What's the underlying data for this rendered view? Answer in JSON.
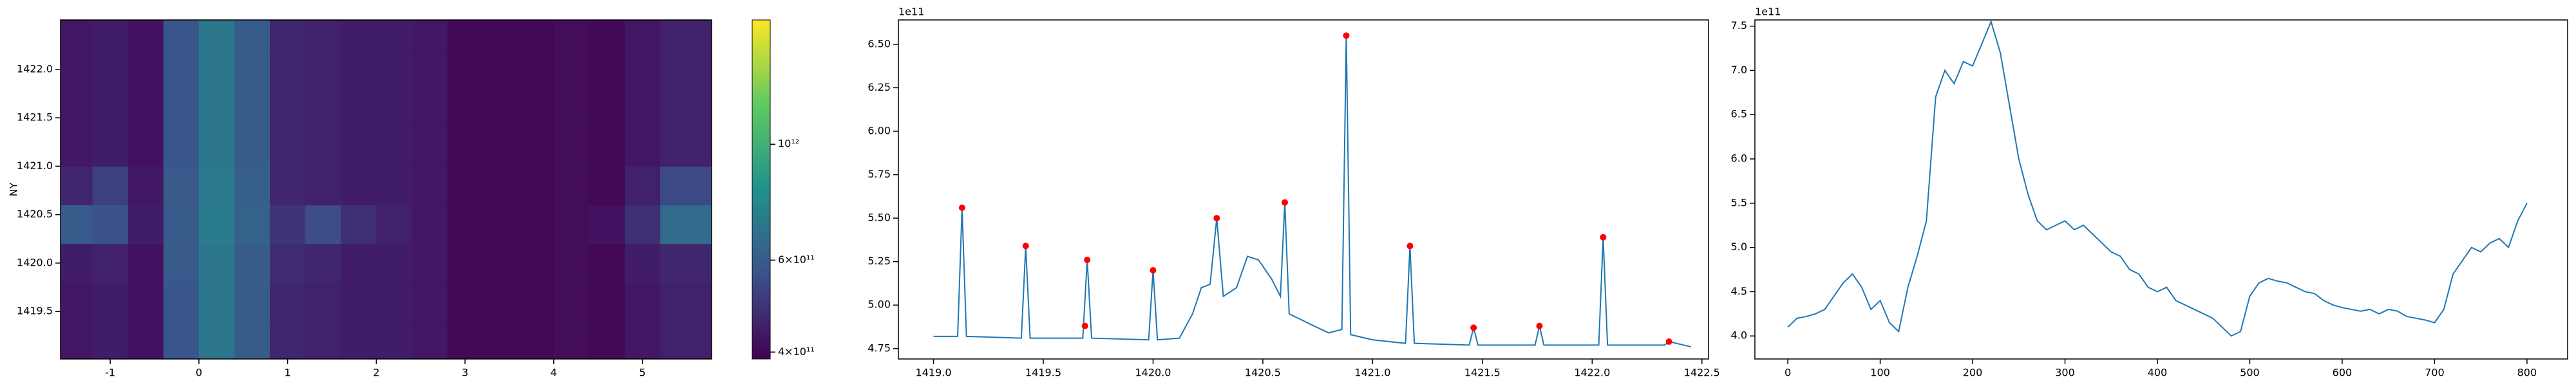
{
  "chart_data": [
    {
      "type": "heatmap",
      "ylabel": "NY",
      "colormap": "viridis",
      "xlim": [
        -1.56,
        5.78
      ],
      "ylim": [
        1419.01,
        1422.51
      ],
      "xticks": [
        -1,
        0,
        1,
        2,
        3,
        4,
        5
      ],
      "yticks": [
        1419.5,
        {
          "value": 1420,
          "label": "1420.0"
        },
        1420.5,
        {
          "value": 1421,
          "label": "1421.0"
        },
        1421.5,
        {
          "value": 1422,
          "label": "1422.0"
        }
      ],
      "x": [
        -1.4,
        -1.0,
        -0.6,
        -0.2,
        0.2,
        0.6,
        1.0,
        1.4,
        1.8,
        2.2,
        2.6,
        3.0,
        3.4,
        3.8,
        4.2,
        4.6,
        5.0,
        5.4
      ],
      "y": [
        1419.2,
        1419.6,
        1420.0,
        1420.4,
        1420.8,
        1421.2,
        1421.6,
        1422.0,
        1422.4
      ],
      "values": [
        [
          430000000000.0,
          440000000000.0,
          420000000000.0,
          580000000000.0,
          700000000000.0,
          600000000000.0,
          460000000000.0,
          450000000000.0,
          440000000000.0,
          440000000000.0,
          430000000000.0,
          400000000000.0,
          400000000000.0,
          400000000000.0,
          410000000000.0,
          400000000000.0,
          430000000000.0,
          450000000000.0
        ],
        [
          430000000000.0,
          440000000000.0,
          420000000000.0,
          580000000000.0,
          700000000000.0,
          600000000000.0,
          460000000000.0,
          450000000000.0,
          440000000000.0,
          440000000000.0,
          430000000000.0,
          400000000000.0,
          400000000000.0,
          400000000000.0,
          410000000000.0,
          400000000000.0,
          430000000000.0,
          450000000000.0
        ],
        [
          440000000000.0,
          450000000000.0,
          420000000000.0,
          590000000000.0,
          700000000000.0,
          600000000000.0,
          470000000000.0,
          460000000000.0,
          440000000000.0,
          440000000000.0,
          430000000000.0,
          400000000000.0,
          400000000000.0,
          400000000000.0,
          410000000000.0,
          400000000000.0,
          440000000000.0,
          460000000000.0
        ],
        [
          600000000000.0,
          560000000000.0,
          440000000000.0,
          600000000000.0,
          720000000000.0,
          620000000000.0,
          490000000000.0,
          550000000000.0,
          480000000000.0,
          450000000000.0,
          430000000000.0,
          400000000000.0,
          400000000000.0,
          400000000000.0,
          410000000000.0,
          420000000000.0,
          480000000000.0,
          650000000000.0
        ],
        [
          460000000000.0,
          520000000000.0,
          430000000000.0,
          590000000000.0,
          710000000000.0,
          610000000000.0,
          460000000000.0,
          450000000000.0,
          440000000000.0,
          440000000000.0,
          430000000000.0,
          400000000000.0,
          400000000000.0,
          400000000000.0,
          410000000000.0,
          400000000000.0,
          450000000000.0,
          540000000000.0
        ],
        [
          430000000000.0,
          440000000000.0,
          420000000000.0,
          580000000000.0,
          700000000000.0,
          600000000000.0,
          460000000000.0,
          450000000000.0,
          440000000000.0,
          440000000000.0,
          430000000000.0,
          400000000000.0,
          400000000000.0,
          400000000000.0,
          410000000000.0,
          400000000000.0,
          430000000000.0,
          450000000000.0
        ],
        [
          430000000000.0,
          440000000000.0,
          420000000000.0,
          580000000000.0,
          700000000000.0,
          600000000000.0,
          460000000000.0,
          450000000000.0,
          440000000000.0,
          440000000000.0,
          430000000000.0,
          400000000000.0,
          400000000000.0,
          400000000000.0,
          410000000000.0,
          400000000000.0,
          430000000000.0,
          450000000000.0
        ],
        [
          430000000000.0,
          440000000000.0,
          420000000000.0,
          580000000000.0,
          700000000000.0,
          600000000000.0,
          460000000000.0,
          450000000000.0,
          440000000000.0,
          440000000000.0,
          430000000000.0,
          400000000000.0,
          400000000000.0,
          400000000000.0,
          410000000000.0,
          400000000000.0,
          430000000000.0,
          450000000000.0
        ],
        [
          430000000000.0,
          440000000000.0,
          420000000000.0,
          580000000000.0,
          700000000000.0,
          600000000000.0,
          460000000000.0,
          450000000000.0,
          440000000000.0,
          440000000000.0,
          430000000000.0,
          400000000000.0,
          400000000000.0,
          400000000000.0,
          410000000000.0,
          400000000000.0,
          430000000000.0,
          450000000000.0
        ]
      ],
      "colorbar": {
        "log": true,
        "lim": [
          388000000000.0,
          1730000000000.0
        ],
        "ticks": [
          {
            "value": 400000000000.0,
            "label": "4×10¹¹"
          },
          {
            "value": 600000000000.0,
            "label": "6×10¹¹"
          },
          {
            "value": 1000000000000.0,
            "label": "10¹²"
          }
        ]
      }
    },
    {
      "type": "line",
      "offset_text": "1e11",
      "xlim": [
        1418.84,
        1422.53
      ],
      "ylim": [
        4.69,
        6.64
      ],
      "xticks": [
        {
          "value": 1419,
          "label": "1419.0"
        },
        1419.5,
        {
          "value": 1420,
          "label": "1420.0"
        },
        1420.5,
        {
          "value": 1421,
          "label": "1421.0"
        },
        1421.5,
        {
          "value": 1422,
          "label": "1422.0"
        },
        1422.5
      ],
      "yticks": [
        4.75,
        {
          "value": 5,
          "label": "5.00"
        },
        5.25,
        {
          "value": 5.5,
          "label": "5.50"
        },
        5.75,
        {
          "value": 6,
          "label": "6.00"
        },
        6.25,
        {
          "value": 6.5,
          "label": "6.50"
        }
      ],
      "series": [
        {
          "style": "line",
          "color": "#1f77b4",
          "x": [
            1419.0,
            1419.11,
            1419.13,
            1419.15,
            1419.4,
            1419.42,
            1419.44,
            1419.68,
            1419.7,
            1419.72,
            1419.98,
            1420.0,
            1420.02,
            1420.12,
            1420.18,
            1420.22,
            1420.26,
            1420.29,
            1420.32,
            1420.38,
            1420.43,
            1420.48,
            1420.54,
            1420.58,
            1420.6,
            1420.62,
            1420.7,
            1420.8,
            1420.86,
            1420.88,
            1420.9,
            1421.0,
            1421.15,
            1421.17,
            1421.19,
            1421.44,
            1421.46,
            1421.48,
            1421.74,
            1421.76,
            1421.78,
            1422.03,
            1422.05,
            1422.07,
            1422.33,
            1422.35,
            1422.45
          ],
          "values": [
            4.82,
            4.82,
            5.56,
            4.82,
            4.81,
            5.34,
            4.81,
            4.81,
            5.26,
            4.81,
            4.8,
            5.2,
            4.8,
            4.81,
            4.95,
            5.1,
            5.12,
            5.5,
            5.05,
            5.1,
            5.28,
            5.26,
            5.15,
            5.05,
            5.59,
            4.95,
            4.9,
            4.84,
            4.86,
            6.55,
            4.83,
            4.8,
            4.78,
            5.34,
            4.78,
            4.77,
            4.87,
            4.77,
            4.77,
            4.88,
            4.77,
            4.77,
            5.39,
            4.77,
            4.77,
            4.79,
            4.76
          ]
        },
        {
          "style": "marker",
          "color": "red",
          "x": [
            1419.13,
            1419.42,
            1419.69,
            1419.7,
            1420.0,
            1420.29,
            1420.6,
            1420.88,
            1421.17,
            1421.46,
            1421.76,
            1422.05,
            1422.35
          ],
          "values": [
            5.56,
            5.34,
            4.88,
            5.26,
            5.2,
            5.5,
            5.59,
            6.55,
            5.34,
            4.87,
            4.88,
            5.39,
            4.79
          ]
        }
      ]
    },
    {
      "type": "line",
      "offset_text": "1e11",
      "xlim": [
        -35.6,
        844
      ],
      "ylim": [
        3.74,
        7.57
      ],
      "xticks": [
        0,
        100,
        200,
        300,
        400,
        500,
        600,
        700,
        800
      ],
      "yticks": [
        {
          "value": 4,
          "label": "4.0"
        },
        4.5,
        {
          "value": 5,
          "label": "5.0"
        },
        5.5,
        {
          "value": 6,
          "label": "6.0"
        },
        6.5,
        {
          "value": 7,
          "label": "7.0"
        },
        7.5
      ],
      "series": [
        {
          "style": "line",
          "color": "#1f77b4",
          "x": [
            0,
            10,
            20,
            30,
            40,
            50,
            60,
            70,
            80,
            90,
            100,
            110,
            120,
            130,
            140,
            150,
            160,
            170,
            180,
            190,
            200,
            210,
            220,
            230,
            240,
            250,
            260,
            270,
            280,
            290,
            300,
            310,
            320,
            330,
            340,
            350,
            360,
            370,
            380,
            390,
            400,
            410,
            420,
            430,
            440,
            450,
            460,
            470,
            480,
            490,
            500,
            510,
            520,
            530,
            540,
            550,
            560,
            570,
            580,
            590,
            600,
            610,
            620,
            630,
            640,
            650,
            660,
            670,
            680,
            690,
            700,
            710,
            720,
            730,
            740,
            750,
            760,
            770,
            780,
            790,
            800
          ],
          "values": [
            4.1,
            4.2,
            4.22,
            4.25,
            4.3,
            4.45,
            4.6,
            4.7,
            4.55,
            4.3,
            4.4,
            4.15,
            4.05,
            4.55,
            4.9,
            5.3,
            6.7,
            7.0,
            6.85,
            7.1,
            7.05,
            7.3,
            7.55,
            7.2,
            6.6,
            6.0,
            5.6,
            5.3,
            5.2,
            5.25,
            5.3,
            5.2,
            5.25,
            5.15,
            5.05,
            4.95,
            4.9,
            4.75,
            4.7,
            4.55,
            4.5,
            4.55,
            4.4,
            4.35,
            4.3,
            4.25,
            4.2,
            4.1,
            4.0,
            4.05,
            4.45,
            4.6,
            4.65,
            4.62,
            4.6,
            4.55,
            4.5,
            4.48,
            4.4,
            4.35,
            4.32,
            4.3,
            4.28,
            4.3,
            4.25,
            4.3,
            4.28,
            4.22,
            4.2,
            4.18,
            4.15,
            4.3,
            4.7,
            4.85,
            5.0,
            4.95,
            5.05,
            5.1,
            5.0,
            5.3,
            5.5
          ]
        }
      ]
    }
  ]
}
